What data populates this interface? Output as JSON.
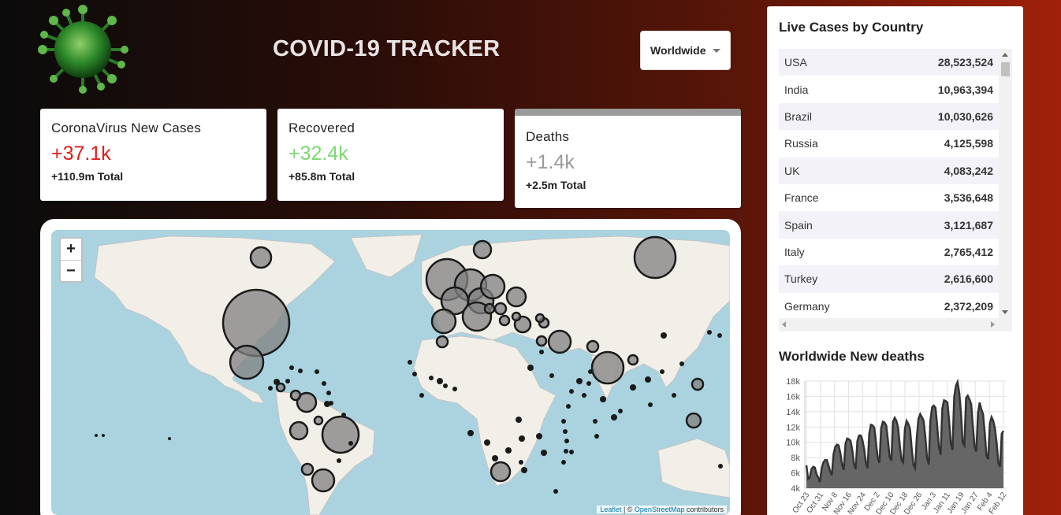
{
  "header": {
    "title": "COVID-19 TRACKER",
    "country_select": {
      "value": "Worldwide"
    },
    "logo_icon": "virus-icon"
  },
  "info_boxes": [
    {
      "title": "CoronaVirus New Cases",
      "value": "+37.1k",
      "total": "+110.9m  Total",
      "color": "#e21b1b",
      "selected": false
    },
    {
      "title": "Recovered",
      "value": "+32.4k",
      "total": "+85.8m  Total",
      "color": "#7dd871",
      "selected": false
    },
    {
      "title": "Deaths",
      "value": "+1.4k",
      "total": "+2.5m  Total",
      "color": "#9a9a9a",
      "selected": true
    }
  ],
  "map": {
    "zoom_in_label": "+",
    "zoom_out_label": "−",
    "attribution": {
      "leaflet": "Leaflet",
      "sep": " | © ",
      "osm": "OpenStreetMap",
      "suffix": " contributors"
    }
  },
  "live_cases": {
    "title": "Live Cases by Country",
    "rows": [
      {
        "country": "USA",
        "cases": "28,523,524"
      },
      {
        "country": "India",
        "cases": "10,963,394"
      },
      {
        "country": "Brazil",
        "cases": "10,030,626"
      },
      {
        "country": "Russia",
        "cases": "4,125,598"
      },
      {
        "country": "UK",
        "cases": "4,083,242"
      },
      {
        "country": "France",
        "cases": "3,536,648"
      },
      {
        "country": "Spain",
        "cases": "3,121,687"
      },
      {
        "country": "Italy",
        "cases": "2,765,412"
      },
      {
        "country": "Turkey",
        "cases": "2,616,600"
      },
      {
        "country": "Germany",
        "cases": "2,372,209"
      }
    ]
  },
  "chart_title": "Worldwide New deaths",
  "chart_data": {
    "type": "area",
    "title": "Worldwide New deaths",
    "yticks": [
      "4k",
      "6k",
      "8k",
      "10k",
      "12k",
      "14k",
      "16k",
      "18k"
    ],
    "ylim": [
      4000,
      18000
    ],
    "xticks": [
      "Oct 23",
      "Oct 31",
      "Nov 8",
      "Nov 16",
      "Nov 24",
      "Dec 2",
      "Dec 10",
      "Dec 18",
      "Dec 26",
      "Jan 3",
      "Jan 11",
      "Jan 19",
      "Jan 27",
      "Feb 4",
      "Feb 12"
    ],
    "fill_color": "#666666",
    "line_color": "#333333",
    "values": [
      7000,
      5200,
      5400,
      6500,
      6800,
      6700,
      5800,
      5400,
      4800,
      6600,
      7400,
      7700,
      7700,
      7000,
      6200,
      5700,
      8500,
      9400,
      9700,
      9600,
      8600,
      7100,
      6400,
      9800,
      10500,
      10400,
      10200,
      9000,
      7200,
      6500,
      10200,
      10900,
      10900,
      10300,
      9100,
      7400,
      6600,
      11100,
      12300,
      12200,
      11900,
      9800,
      8000,
      7300,
      11800,
      12700,
      12600,
      12200,
      10300,
      8100,
      7600,
      12700,
      13200,
      12800,
      11900,
      9600,
      7700,
      7400,
      11800,
      12800,
      12400,
      11700,
      9200,
      7000,
      6600,
      10700,
      13100,
      13700,
      13300,
      12800,
      10700,
      8000,
      7100,
      12800,
      14600,
      14800,
      14500,
      12200,
      9400,
      8400,
      14400,
      15500,
      15400,
      15200,
      12900,
      9900,
      9000,
      15900,
      17400,
      17900,
      16400,
      13800,
      10000,
      9600,
      15800,
      16100,
      15600,
      15000,
      12100,
      9400,
      8800,
      13800,
      15200,
      14300,
      13700,
      11200,
      8300,
      7800,
      12500,
      13300,
      12800,
      11800,
      9900,
      7300,
      6800,
      11100,
      11500
    ]
  }
}
